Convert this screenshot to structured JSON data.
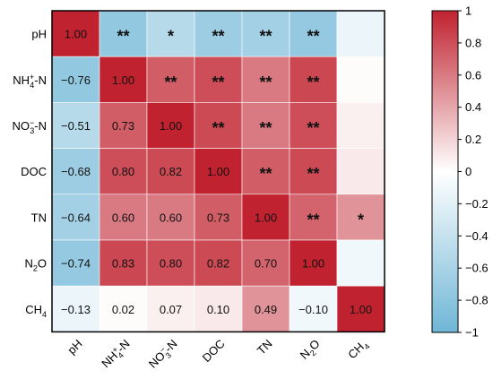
{
  "chart_data": {
    "type": "heatmap",
    "title": "",
    "variables": [
      "pH",
      "NH4+-N",
      "NO3−-N",
      "DOC",
      "TN",
      "N2O",
      "CH4"
    ],
    "row_labels": [
      {
        "base": "pH",
        "sup": "",
        "sub": "",
        "tail": ""
      },
      {
        "base": "NH",
        "sub": "4",
        "sup": "+",
        "tail": "-N"
      },
      {
        "base": "NO",
        "sub": "3",
        "sup": "−",
        "tail": "-N"
      },
      {
        "base": "DOC",
        "sup": "",
        "sub": "",
        "tail": ""
      },
      {
        "base": "TN",
        "sup": "",
        "sub": "",
        "tail": ""
      },
      {
        "base": "N",
        "sub": "2",
        "sup": "",
        "tail": "O"
      },
      {
        "base": "CH",
        "sub": "4",
        "sup": "",
        "tail": ""
      }
    ],
    "col_labels": [
      {
        "base": "pH",
        "sup": "",
        "sub": "",
        "tail": ""
      },
      {
        "base": "NH",
        "sub": "4",
        "sup": "+",
        "tail": "-N"
      },
      {
        "base": "NO",
        "sub": "3",
        "sup": "−",
        "tail": "-N"
      },
      {
        "base": "DOC",
        "sup": "",
        "sub": "",
        "tail": ""
      },
      {
        "base": "TN",
        "sup": "",
        "sub": "",
        "tail": ""
      },
      {
        "base": "N",
        "sub": "2",
        "sup": "",
        "tail": "O"
      },
      {
        "base": "CH",
        "sub": "4",
        "sup": "",
        "tail": ""
      }
    ],
    "matrix": [
      [
        1.0,
        -0.76,
        -0.51,
        -0.68,
        -0.64,
        -0.74,
        -0.13
      ],
      [
        -0.76,
        1.0,
        0.73,
        0.8,
        0.6,
        0.83,
        0.02
      ],
      [
        -0.51,
        0.73,
        1.0,
        0.82,
        0.6,
        0.8,
        0.07
      ],
      [
        -0.68,
        0.8,
        0.82,
        1.0,
        0.73,
        0.82,
        0.1
      ],
      [
        -0.64,
        0.6,
        0.6,
        0.73,
        1.0,
        0.7,
        0.49
      ],
      [
        -0.74,
        0.83,
        0.8,
        0.82,
        0.7,
        1.0,
        -0.1
      ],
      [
        -0.13,
        0.02,
        0.07,
        0.1,
        0.49,
        -0.1,
        1.0
      ]
    ],
    "cell_text": [
      [
        "1.00",
        "**",
        "*",
        "**",
        "**",
        "**",
        ""
      ],
      [
        "−0.76",
        "1.00",
        "**",
        "**",
        "**",
        "**",
        ""
      ],
      [
        "−0.51",
        "0.73",
        "1.00",
        "**",
        "**",
        "**",
        ""
      ],
      [
        "−0.68",
        "0.80",
        "0.82",
        "1.00",
        "**",
        "**",
        ""
      ],
      [
        "−0.64",
        "0.60",
        "0.60",
        "0.73",
        "1.00",
        "**",
        "*"
      ],
      [
        "−0.74",
        "0.83",
        "0.80",
        "0.82",
        "0.70",
        "1.00",
        ""
      ],
      [
        "−0.13",
        "0.02",
        "0.07",
        "0.10",
        "0.49",
        "−0.10",
        "1.00"
      ]
    ],
    "colorbar": {
      "range": [
        -1,
        1
      ],
      "ticks": [
        1,
        0.8,
        0.6,
        0.4,
        0.2,
        0,
        -0.2,
        -0.4,
        -0.6,
        -0.8,
        -1
      ],
      "tick_labels": [
        "1",
        "0.8",
        "0.6",
        "0.4",
        "0.2",
        "0",
        "−0.2",
        "−0.4",
        "−0.6",
        "−0.8",
        "−1"
      ],
      "negative_color": "#6fb6d6",
      "zero_color": "#ffffff",
      "positive_color": "#c0222f"
    }
  }
}
